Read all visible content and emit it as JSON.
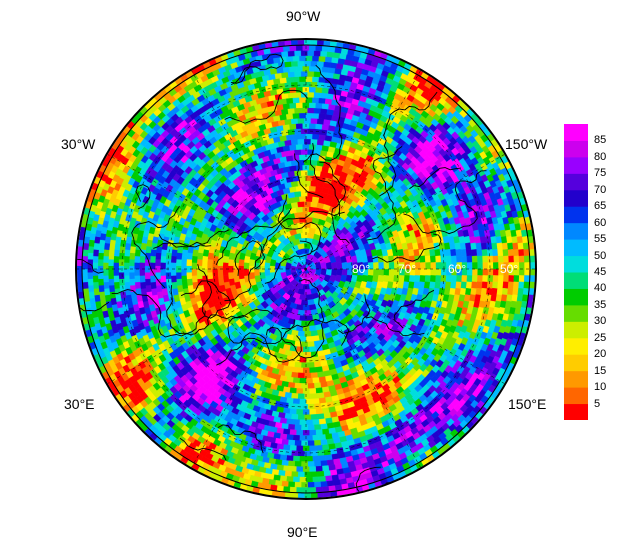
{
  "chart_data": {
    "type": "heatmap",
    "projection": "north polar stereographic",
    "title": "",
    "longitude_labels": {
      "top": "90°W",
      "bottom": "90°E",
      "upper_left": "30°W",
      "upper_right": "150°W",
      "lower_left": "30°E",
      "lower_right": "150°E"
    },
    "latitude_labels": [
      "80°",
      "70°",
      "60°",
      "50°"
    ],
    "colorbar": {
      "ticks": [
        5,
        10,
        15,
        20,
        25,
        30,
        35,
        40,
        45,
        50,
        55,
        60,
        65,
        70,
        75,
        80,
        85
      ],
      "range": [
        0,
        90
      ],
      "colors": [
        "#ff0000",
        "#ff6600",
        "#ff9900",
        "#ffcc00",
        "#ffee00",
        "#ccee00",
        "#66dd00",
        "#00cc00",
        "#00dd77",
        "#00dddd",
        "#00bbff",
        "#0088ff",
        "#0033ee",
        "#2200cc",
        "#5500dd",
        "#9900ff",
        "#cc00ee",
        "#ff00ff"
      ]
    },
    "grid": true,
    "legend": "right"
  }
}
